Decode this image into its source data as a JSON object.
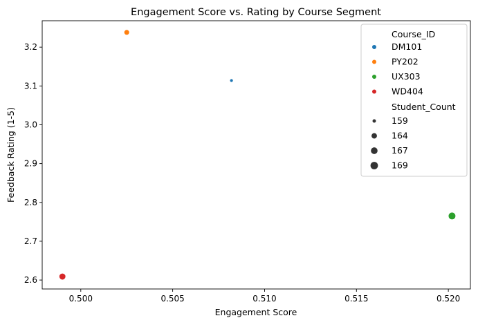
{
  "chart_data": {
    "type": "scatter",
    "title": "Engagement Score vs. Rating by Course Segment",
    "xlabel": "Engagement Score",
    "ylabel": "Feedback Rating (1-5)",
    "xlim": [
      0.4979,
      0.5212
    ],
    "ylim": [
      2.577,
      3.268
    ],
    "x_ticks": [
      0.5,
      0.505,
      0.51,
      0.515,
      0.52
    ],
    "x_tick_labels": [
      "0.500",
      "0.505",
      "0.510",
      "0.515",
      "0.520"
    ],
    "y_ticks": [
      2.6,
      2.7,
      2.8,
      2.9,
      3.0,
      3.1,
      3.2
    ],
    "y_tick_labels": [
      "2.6",
      "2.7",
      "2.8",
      "2.9",
      "3.0",
      "3.1",
      "3.2"
    ],
    "grid": false,
    "legend_position": "top-right",
    "hue_title": "Course_ID",
    "size_title": "Student_Count",
    "series": [
      {
        "name": "DM101",
        "color": "#1f77b4",
        "x": 0.5082,
        "y": 3.114,
        "student_count": 159
      },
      {
        "name": "PY202",
        "color": "#ff7f0e",
        "x": 0.5025,
        "y": 3.238,
        "student_count": 164
      },
      {
        "name": "UX303",
        "color": "#2ca02c",
        "x": 0.5202,
        "y": 2.765,
        "student_count": 169
      },
      {
        "name": "WD404",
        "color": "#d62728",
        "x": 0.499,
        "y": 2.609,
        "student_count": 167
      }
    ],
    "size_legend": [
      {
        "label": "159",
        "value": 159
      },
      {
        "label": "164",
        "value": 164
      },
      {
        "label": "167",
        "value": 167
      },
      {
        "label": "169",
        "value": 169
      }
    ],
    "legend_marker_color": "#333333"
  }
}
